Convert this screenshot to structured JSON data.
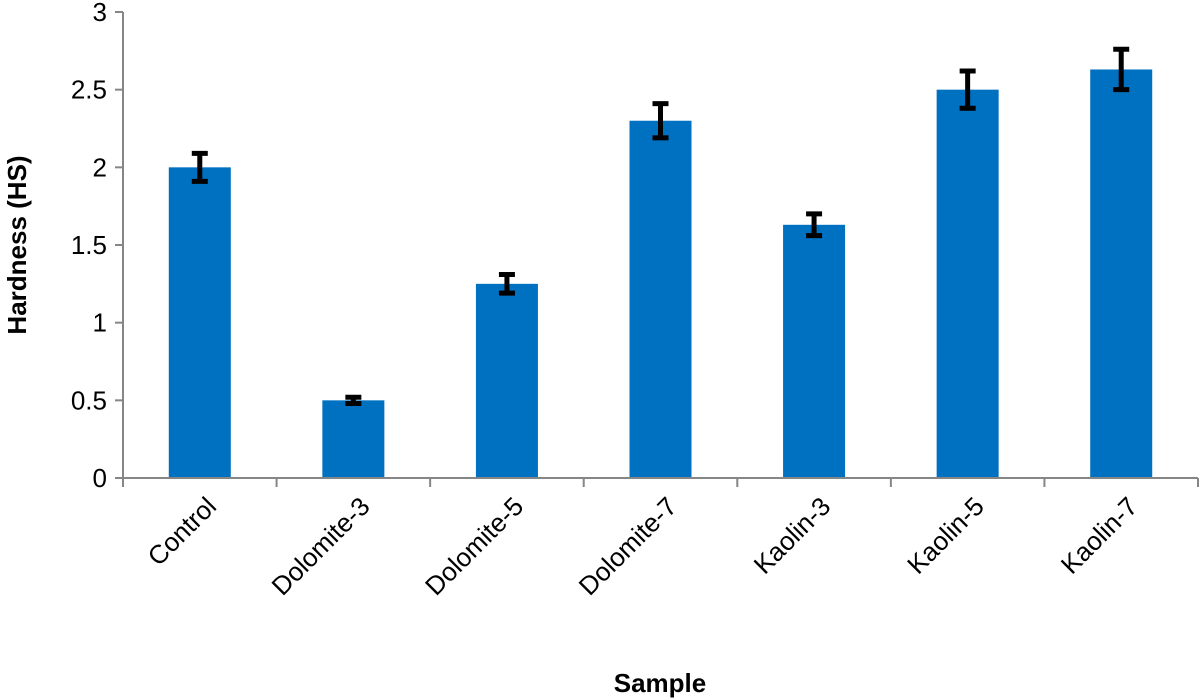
{
  "chart_data": {
    "type": "bar",
    "title": "",
    "xlabel": "Sample",
    "ylabel": "Hardness (HS)",
    "ylim": [
      0,
      3
    ],
    "yticks": [
      0,
      0.5,
      1,
      1.5,
      2,
      2.5,
      3
    ],
    "ytick_labels": [
      "0",
      "0.5",
      "1",
      "1.5",
      "2",
      "2.5",
      "3"
    ],
    "categories": [
      "Control",
      "Dolomite-3",
      "Dolomite-5",
      "Dolomite-7",
      "Kaolin-3",
      "Kaolin-5",
      "Kaolin-7"
    ],
    "values": [
      2.0,
      0.5,
      1.25,
      2.3,
      1.63,
      2.5,
      2.63
    ],
    "errors": [
      0.09,
      0.02,
      0.06,
      0.11,
      0.07,
      0.12,
      0.13
    ],
    "grid": false,
    "legend": "none",
    "bar_color": "#0070C0",
    "error_bar_color": "#000000",
    "axis_color": "#868686"
  }
}
